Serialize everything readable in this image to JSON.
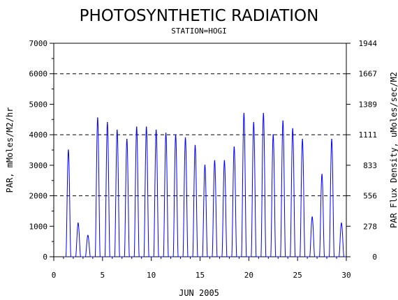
{
  "chart_data": {
    "type": "line",
    "title": "PHOTOSYNTHETIC RADIATION",
    "subtitle": "STATION=HOGI",
    "xlabel": "JUN 2005",
    "ylabel": "PAR, mMoles/M2/hr",
    "ylabel_right": "PAR Flux Density, uMoles/sec/M2",
    "xlim": [
      0,
      30
    ],
    "ylim": [
      0,
      7000
    ],
    "x_ticks": [
      "0",
      "5",
      "10",
      "15",
      "20",
      "25",
      "30"
    ],
    "y_ticks": [
      "0",
      "1000",
      "2000",
      "3000",
      "4000",
      "5000",
      "6000",
      "7000"
    ],
    "y_ticks_right": [
      "0",
      "278",
      "556",
      "833",
      "1111",
      "1389",
      "1667",
      "1944"
    ],
    "gridlines_y": [
      2000,
      4000,
      6000
    ],
    "line_color": "#0000ff",
    "series": [
      {
        "daily_peaks": [
          {
            "day": 1,
            "peak": 3500
          },
          {
            "day": 2,
            "peak": 1100
          },
          {
            "day": 3,
            "peak": 700
          },
          {
            "day": 4,
            "peak": 4550
          },
          {
            "day": 5,
            "peak": 4400
          },
          {
            "day": 6,
            "peak": 4150
          },
          {
            "day": 7,
            "peak": 3850
          },
          {
            "day": 8,
            "peak": 4250
          },
          {
            "day": 9,
            "peak": 4250
          },
          {
            "day": 10,
            "peak": 4150
          },
          {
            "day": 11,
            "peak": 4050
          },
          {
            "day": 12,
            "peak": 4000
          },
          {
            "day": 13,
            "peak": 3900
          },
          {
            "day": 14,
            "peak": 3650
          },
          {
            "day": 15,
            "peak": 3000
          },
          {
            "day": 16,
            "peak": 3150
          },
          {
            "day": 17,
            "peak": 3150
          },
          {
            "day": 18,
            "peak": 3600
          },
          {
            "day": 19,
            "peak": 4700
          },
          {
            "day": 20,
            "peak": 4400
          },
          {
            "day": 21,
            "peak": 4700
          },
          {
            "day": 22,
            "peak": 4000
          },
          {
            "day": 23,
            "peak": 4450
          },
          {
            "day": 24,
            "peak": 4200
          },
          {
            "day": 25,
            "peak": 3850
          },
          {
            "day": 26,
            "peak": 1300
          },
          {
            "day": 27,
            "peak": 2700
          },
          {
            "day": 28,
            "peak": 3850
          },
          {
            "day": 29,
            "peak": 1100
          }
        ]
      }
    ]
  }
}
